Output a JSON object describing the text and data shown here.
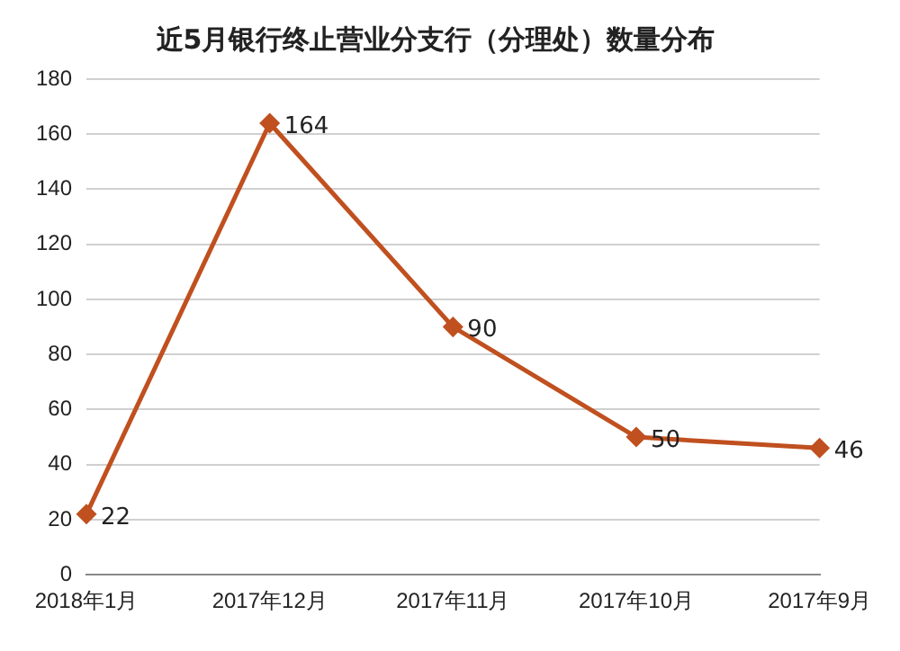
{
  "chart_data": {
    "type": "line",
    "title": "近5月银行终止营业分支行（分理处）数量分布",
    "categories": [
      "2018年1月",
      "2017年12月",
      "2017年11月",
      "2017年10月",
      "2017年9月"
    ],
    "series": [
      {
        "color": "#c0501f",
        "values": [
          22,
          164,
          90,
          50,
          46
        ]
      }
    ],
    "ylim": [
      0,
      180
    ],
    "yticks": [
      0,
      20,
      40,
      60,
      80,
      100,
      120,
      140,
      160,
      180
    ],
    "grid": "y",
    "legend": false,
    "marker": "diamond",
    "line_style": "solid",
    "data_labels": true
  }
}
